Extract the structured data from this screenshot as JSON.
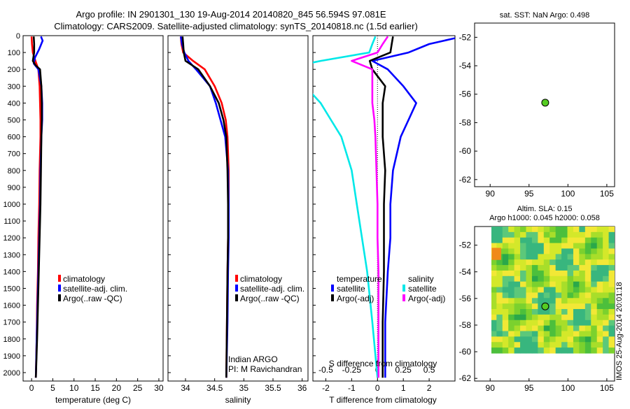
{
  "header": {
    "title_line1": "Argo profile: IN 2901301_130 19-Aug-2014 20140820_845 56.594S 97.081E",
    "title_line2": "Climatology: CARS2009. Satellite-adjusted climatology: synTS_20140818.nc (1.5d earlier)"
  },
  "colors": {
    "climatology": "#ff0000",
    "satellite": "#0000ff",
    "argo": "#000000",
    "salinity_satellite": "#00e8e8",
    "salinity_argo": "#ff00ff",
    "marker": "#55cc22"
  },
  "legends": {
    "temperature": [
      "climatology",
      "satellite-adj. clim.",
      "Argo(..raw -QC)"
    ],
    "salinity": [
      "climatology",
      "satellite-adj. clim.",
      "Argo(..raw -QC)"
    ],
    "difference": {
      "temperature_heading": "temperature",
      "salinity_heading": "salinity",
      "temperature_items": [
        "satellite",
        "Argo(-adj)"
      ],
      "salinity_items": [
        "satellite",
        "Argo(-adj)"
      ]
    }
  },
  "annotations": {
    "float_program": "Indian ARGO",
    "pi": "PI: M Ravichandran",
    "credit": "IMOS 25-Aug-2014 20:01:18"
  },
  "sst_panel": {
    "title": "sat. SST: NaN Argo: 0.498"
  },
  "sla_panel": {
    "title1": "Altim. SLA: 0.15",
    "title2": "Argo h1000: 0.045 h2000: 0.058"
  },
  "chart_data": [
    {
      "id": "temperature",
      "type": "line",
      "xlabel": "temperature (deg C)",
      "ylabel": "",
      "xlim": [
        -2,
        31
      ],
      "ylim": [
        2050,
        0
      ],
      "xticks": [
        0,
        5,
        10,
        15,
        20,
        25,
        30
      ],
      "yticks": [
        0,
        100,
        200,
        300,
        400,
        500,
        600,
        700,
        800,
        900,
        1000,
        1100,
        1200,
        1300,
        1400,
        1500,
        1600,
        1700,
        1800,
        1900,
        2000
      ],
      "series": [
        {
          "name": "climatology",
          "color": "#ff0000",
          "x": [
            0.0,
            0.1,
            0.3,
            0.9,
            1.6,
            1.9,
            2.0,
            2.1,
            2.1,
            2.0,
            1.9,
            1.8,
            1.6,
            1.5,
            1.3,
            1.2,
            1.0
          ],
          "y": [
            5,
            50,
            100,
            150,
            200,
            300,
            400,
            500,
            600,
            700,
            800,
            1000,
            1200,
            1400,
            1600,
            1800,
            2030
          ]
        },
        {
          "name": "satellite-adj. clim.",
          "color": "#0000ff",
          "x": [
            2.2,
            2.6,
            1.8,
            0.8,
            0.5,
            1.6,
            2.3,
            2.5,
            2.5,
            2.3,
            2.1,
            2.0,
            1.8,
            1.6,
            1.4,
            1.2,
            1.0
          ],
          "y": [
            5,
            30,
            80,
            130,
            165,
            200,
            300,
            400,
            500,
            600,
            800,
            1000,
            1200,
            1400,
            1600,
            1800,
            2030
          ]
        },
        {
          "name": "Argo(..raw -QC)",
          "color": "#000000",
          "x": [
            0.5,
            0.6,
            0.6,
            0.3,
            0.9,
            2.0,
            2.3,
            2.4,
            2.4,
            2.3,
            2.2,
            2.1,
            1.9,
            1.7,
            1.5,
            1.3,
            1.0
          ],
          "y": [
            5,
            50,
            100,
            150,
            175,
            200,
            300,
            400,
            500,
            600,
            800,
            1000,
            1200,
            1400,
            1600,
            1800,
            2030
          ]
        }
      ]
    },
    {
      "id": "salinity",
      "type": "line",
      "xlabel": "salinity",
      "ylabel": "",
      "xlim": [
        33.7,
        36.1
      ],
      "ylim": [
        2050,
        0
      ],
      "xticks": [
        34,
        34.5,
        35,
        35.5,
        36
      ],
      "series": [
        {
          "name": "climatology",
          "color": "#ff0000",
          "x": [
            33.92,
            33.93,
            33.96,
            34.13,
            34.33,
            34.5,
            34.62,
            34.69,
            34.72,
            34.74,
            34.74,
            34.73,
            34.72,
            34.71,
            34.7
          ],
          "y": [
            5,
            50,
            100,
            150,
            200,
            300,
            400,
            500,
            600,
            800,
            1000,
            1200,
            1400,
            1700,
            2030
          ]
        },
        {
          "name": "satellite-adj. clim.",
          "color": "#0000ff",
          "x": [
            33.92,
            33.94,
            33.98,
            34.05,
            34.18,
            34.3,
            34.42,
            34.52,
            34.6,
            34.68,
            34.73,
            34.74,
            34.74,
            34.73,
            34.72,
            34.7
          ],
          "y": [
            5,
            50,
            100,
            150,
            200,
            250,
            300,
            400,
            500,
            600,
            800,
            1000,
            1200,
            1400,
            1700,
            2030
          ]
        },
        {
          "name": "Argo(..raw -QC)",
          "color": "#000000",
          "x": [
            33.95,
            33.96,
            33.97,
            34.0,
            34.22,
            34.42,
            34.57,
            34.65,
            34.7,
            34.72,
            34.73,
            34.73,
            34.72,
            34.71,
            34.7
          ],
          "y": [
            5,
            50,
            100,
            150,
            200,
            300,
            400,
            500,
            600,
            800,
            1000,
            1200,
            1400,
            1700,
            2030
          ]
        }
      ]
    },
    {
      "id": "difference",
      "type": "line",
      "xlabel": "T difference from climatology",
      "xlabel_top": "S difference from climatology",
      "xlim": [
        -2.5,
        3.0
      ],
      "x_secondary_ticks": [
        -0.5,
        -0.25,
        0,
        0.25,
        0.5
      ],
      "ylim": [
        2050,
        0
      ],
      "xticks": [
        -2,
        -1,
        0,
        1,
        2
      ],
      "series": [
        {
          "name": "T satellite",
          "color": "#0000ff",
          "x": [
            3.0,
            2.0,
            1.2,
            -0.2,
            0.4,
            1.0,
            1.5,
            1.2,
            0.9,
            0.6,
            0.5,
            0.5,
            0.4,
            0.3,
            0.3
          ],
          "y": [
            15,
            50,
            100,
            150,
            200,
            300,
            400,
            500,
            600,
            800,
            1000,
            1200,
            1400,
            1700,
            2030
          ]
        },
        {
          "name": "T Argo(-adj)",
          "color": "#000000",
          "x": [
            0.6,
            0.55,
            0.5,
            -0.3,
            -0.2,
            0.3,
            0.2,
            0.2,
            0.2,
            0.3,
            0.25,
            0.25,
            0.25,
            0.2,
            0.2
          ],
          "y": [
            5,
            50,
            100,
            150,
            200,
            300,
            400,
            500,
            600,
            800,
            1000,
            1200,
            1400,
            1700,
            2030
          ]
        },
        {
          "name": "S satellite",
          "color": "#00e8e8",
          "x": [
            -0.02,
            -0.05,
            -0.08,
            -0.55,
            -0.95,
            -0.7,
            -0.55,
            -0.45,
            -0.35,
            -0.25,
            -0.2,
            -0.15,
            -0.1,
            -0.05,
            0.0
          ],
          "y": [
            5,
            50,
            100,
            150,
            200,
            300,
            400,
            500,
            600,
            800,
            1000,
            1200,
            1400,
            1700,
            2030
          ]
        },
        {
          "name": "S Argo(-adj)",
          "color": "#ff00ff",
          "x": [
            0.1,
            0.05,
            0.0,
            -0.25,
            -0.05,
            -0.05,
            -0.05,
            -0.03,
            -0.02,
            -0.01,
            0.0,
            0.0,
            0.01,
            0.01,
            0.01
          ],
          "y": [
            5,
            50,
            100,
            150,
            200,
            300,
            400,
            500,
            600,
            800,
            1000,
            1200,
            1400,
            1700,
            2030
          ]
        }
      ]
    },
    {
      "id": "sst_map",
      "type": "scatter",
      "xlim": [
        88,
        106
      ],
      "ylim": [
        -62.5,
        -51
      ],
      "xticks": [
        90,
        95,
        100,
        105
      ],
      "yticks": [
        -52,
        -54,
        -56,
        -58,
        -60,
        -62
      ],
      "points": [
        {
          "x": 97.081,
          "y": -56.594
        }
      ]
    },
    {
      "id": "sla_map",
      "type": "heatmap",
      "xlim": [
        88,
        106
      ],
      "ylim": [
        -62.2,
        -50.6
      ],
      "xticks": [
        90,
        95,
        100,
        105
      ],
      "yticks": [
        -52,
        -54,
        -56,
        -58,
        -60,
        -62
      ],
      "points": [
        {
          "x": 97.081,
          "y": -56.594
        }
      ]
    }
  ]
}
